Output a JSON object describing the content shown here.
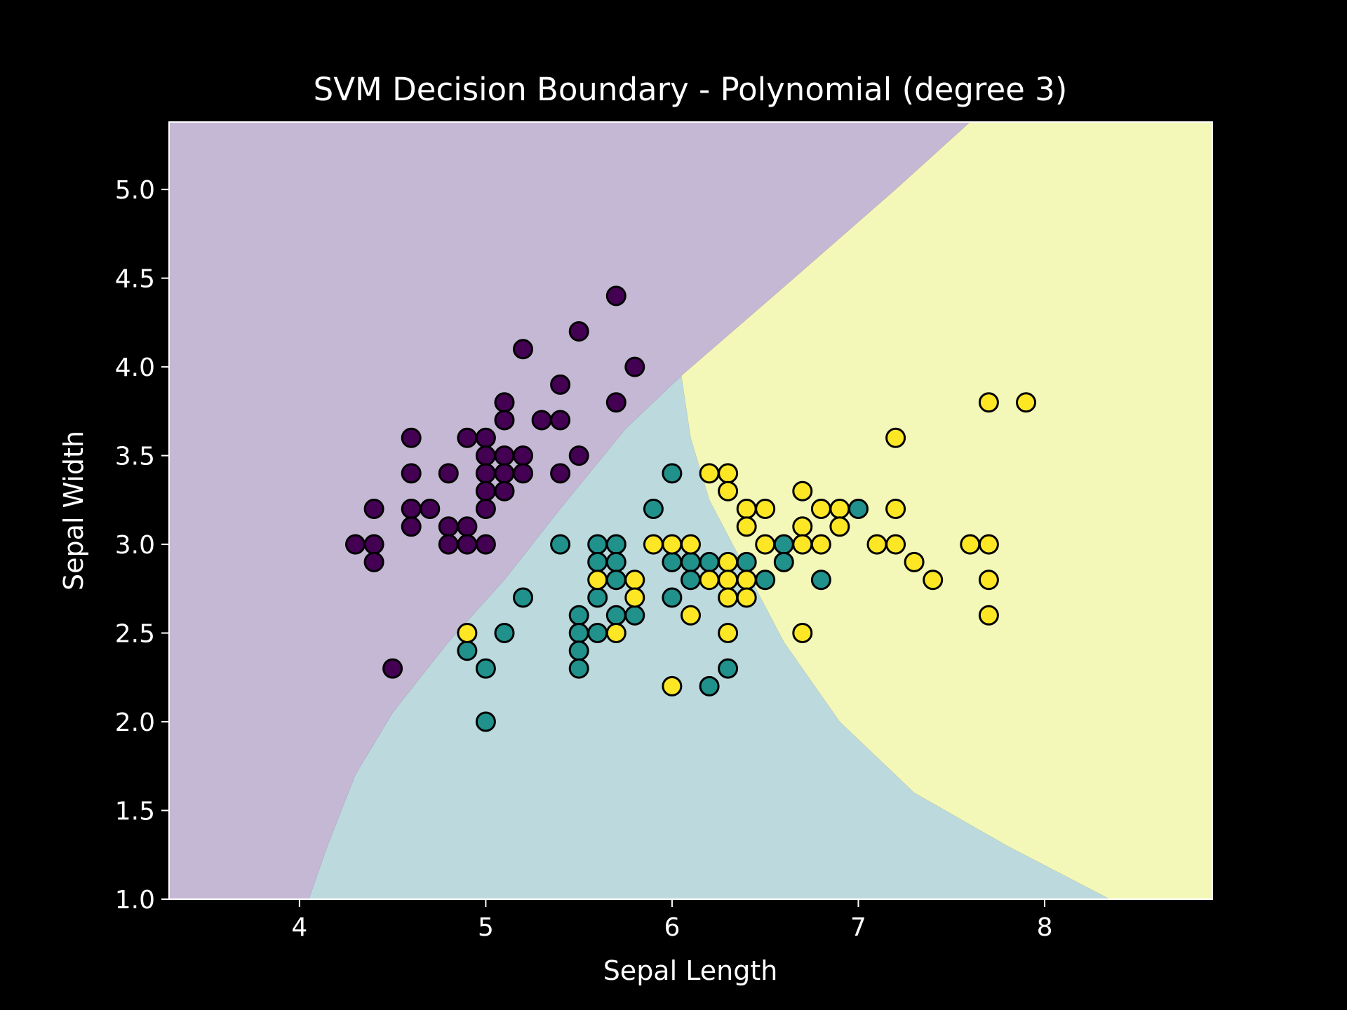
{
  "chart_data": {
    "type": "scatter",
    "title": "SVM Decision Boundary - Polynomial (degree 3)",
    "xlabel": "Sepal Length",
    "ylabel": "Sepal Width",
    "xlim": [
      3.3,
      8.9
    ],
    "ylim": [
      1.0,
      5.38
    ],
    "x_ticks": [
      4,
      5,
      6,
      7,
      8
    ],
    "y_ticks": [
      1.0,
      1.5,
      2.0,
      2.5,
      3.0,
      3.5,
      4.0,
      4.5,
      5.0
    ],
    "x_tick_labels": [
      "4",
      "5",
      "6",
      "7",
      "8"
    ],
    "y_tick_labels": [
      "1.0",
      "1.5",
      "2.0",
      "2.5",
      "3.0",
      "3.5",
      "4.0",
      "4.5",
      "5.0"
    ],
    "grid": false,
    "background": "#000000",
    "region_colors": [
      "#c5b8d4",
      "#bcdade",
      "#f3f8b8"
    ],
    "point_colors": [
      "#440154",
      "#21918c",
      "#fde725"
    ],
    "regions": [
      {
        "class": 0,
        "boundary": [
          [
            3.3,
            1.0
          ],
          [
            4.05,
            1.0
          ],
          [
            4.15,
            1.3
          ],
          [
            4.3,
            1.7
          ],
          [
            4.5,
            2.05
          ],
          [
            4.8,
            2.45
          ],
          [
            5.1,
            2.8
          ],
          [
            5.4,
            3.2
          ],
          [
            5.75,
            3.65
          ],
          [
            6.05,
            3.95
          ],
          [
            6.6,
            4.45
          ],
          [
            7.2,
            5.0
          ],
          [
            7.6,
            5.38
          ],
          [
            3.3,
            5.38
          ]
        ]
      },
      {
        "class": 1,
        "boundary": [
          [
            4.05,
            1.0
          ],
          [
            8.35,
            1.0
          ],
          [
            7.8,
            1.3
          ],
          [
            7.3,
            1.6
          ],
          [
            6.9,
            2.0
          ],
          [
            6.6,
            2.45
          ],
          [
            6.4,
            2.85
          ],
          [
            6.2,
            3.25
          ],
          [
            6.1,
            3.6
          ],
          [
            6.05,
            3.95
          ],
          [
            5.75,
            3.65
          ],
          [
            5.4,
            3.2
          ],
          [
            5.1,
            2.8
          ],
          [
            4.8,
            2.45
          ],
          [
            4.5,
            2.05
          ],
          [
            4.3,
            1.7
          ],
          [
            4.15,
            1.3
          ]
        ]
      },
      {
        "class": 2,
        "boundary": [
          [
            8.35,
            1.0
          ],
          [
            8.9,
            1.0
          ],
          [
            8.9,
            5.38
          ],
          [
            7.6,
            5.38
          ],
          [
            7.2,
            5.0
          ],
          [
            6.6,
            4.45
          ],
          [
            6.05,
            3.95
          ],
          [
            6.1,
            3.6
          ],
          [
            6.2,
            3.25
          ],
          [
            6.4,
            2.85
          ],
          [
            6.6,
            2.45
          ],
          [
            6.9,
            2.0
          ],
          [
            7.3,
            1.6
          ],
          [
            7.8,
            1.3
          ]
        ]
      }
    ],
    "series": [
      {
        "class": 0,
        "points": [
          [
            5.7,
            4.4
          ],
          [
            5.5,
            4.2
          ],
          [
            5.2,
            4.1
          ],
          [
            5.8,
            4.0
          ],
          [
            5.4,
            3.9
          ],
          [
            5.1,
            3.8
          ],
          [
            5.7,
            3.8
          ],
          [
            5.1,
            3.7
          ],
          [
            5.3,
            3.7
          ],
          [
            5.4,
            3.7
          ],
          [
            4.6,
            3.6
          ],
          [
            4.9,
            3.6
          ],
          [
            5.0,
            3.6
          ],
          [
            5.0,
            3.5
          ],
          [
            5.1,
            3.5
          ],
          [
            5.2,
            3.5
          ],
          [
            5.5,
            3.5
          ],
          [
            4.6,
            3.4
          ],
          [
            4.8,
            3.4
          ],
          [
            5.0,
            3.4
          ],
          [
            5.1,
            3.4
          ],
          [
            5.2,
            3.4
          ],
          [
            5.4,
            3.4
          ],
          [
            5.0,
            3.3
          ],
          [
            5.1,
            3.3
          ],
          [
            4.4,
            3.2
          ],
          [
            4.6,
            3.2
          ],
          [
            4.7,
            3.2
          ],
          [
            5.0,
            3.2
          ],
          [
            4.6,
            3.1
          ],
          [
            4.8,
            3.1
          ],
          [
            4.9,
            3.1
          ],
          [
            4.3,
            3.0
          ],
          [
            4.4,
            3.0
          ],
          [
            4.8,
            3.0
          ],
          [
            4.9,
            3.0
          ],
          [
            5.0,
            3.0
          ],
          [
            4.4,
            2.9
          ],
          [
            4.5,
            2.3
          ]
        ]
      },
      {
        "class": 1,
        "points": [
          [
            6.0,
            3.4
          ],
          [
            5.9,
            3.2
          ],
          [
            7.0,
            3.2
          ],
          [
            5.4,
            3.0
          ],
          [
            5.6,
            3.0
          ],
          [
            5.7,
            3.0
          ],
          [
            6.6,
            3.0
          ],
          [
            5.6,
            2.9
          ],
          [
            5.7,
            2.9
          ],
          [
            6.0,
            2.9
          ],
          [
            6.1,
            2.9
          ],
          [
            6.2,
            2.9
          ],
          [
            6.4,
            2.9
          ],
          [
            6.6,
            2.9
          ],
          [
            5.7,
            2.8
          ],
          [
            6.1,
            2.8
          ],
          [
            6.5,
            2.8
          ],
          [
            6.8,
            2.8
          ],
          [
            5.2,
            2.7
          ],
          [
            5.6,
            2.7
          ],
          [
            6.0,
            2.7
          ],
          [
            5.5,
            2.6
          ],
          [
            5.7,
            2.6
          ],
          [
            5.8,
            2.6
          ],
          [
            5.1,
            2.5
          ],
          [
            5.5,
            2.5
          ],
          [
            5.6,
            2.5
          ],
          [
            4.9,
            2.4
          ],
          [
            5.5,
            2.4
          ],
          [
            5.0,
            2.3
          ],
          [
            5.5,
            2.3
          ],
          [
            6.3,
            2.3
          ],
          [
            6.2,
            2.2
          ],
          [
            5.0,
            2.0
          ]
        ]
      },
      {
        "class": 2,
        "points": [
          [
            7.7,
            3.8
          ],
          [
            7.9,
            3.8
          ],
          [
            7.2,
            3.6
          ],
          [
            6.2,
            3.4
          ],
          [
            6.3,
            3.4
          ],
          [
            6.3,
            3.3
          ],
          [
            6.7,
            3.3
          ],
          [
            6.4,
            3.2
          ],
          [
            6.5,
            3.2
          ],
          [
            6.8,
            3.2
          ],
          [
            6.9,
            3.2
          ],
          [
            7.2,
            3.2
          ],
          [
            6.4,
            3.1
          ],
          [
            6.7,
            3.1
          ],
          [
            6.9,
            3.1
          ],
          [
            5.9,
            3.0
          ],
          [
            6.0,
            3.0
          ],
          [
            6.1,
            3.0
          ],
          [
            6.5,
            3.0
          ],
          [
            6.7,
            3.0
          ],
          [
            6.8,
            3.0
          ],
          [
            7.1,
            3.0
          ],
          [
            7.2,
            3.0
          ],
          [
            7.6,
            3.0
          ],
          [
            7.7,
            3.0
          ],
          [
            6.3,
            2.9
          ],
          [
            7.3,
            2.9
          ],
          [
            5.6,
            2.8
          ],
          [
            5.8,
            2.8
          ],
          [
            6.2,
            2.8
          ],
          [
            6.3,
            2.8
          ],
          [
            6.4,
            2.8
          ],
          [
            7.4,
            2.8
          ],
          [
            7.7,
            2.8
          ],
          [
            5.8,
            2.7
          ],
          [
            6.3,
            2.7
          ],
          [
            6.4,
            2.7
          ],
          [
            6.1,
            2.6
          ],
          [
            7.7,
            2.6
          ],
          [
            4.9,
            2.5
          ],
          [
            5.7,
            2.5
          ],
          [
            6.3,
            2.5
          ],
          [
            6.7,
            2.5
          ],
          [
            6.0,
            2.2
          ]
        ]
      }
    ]
  }
}
